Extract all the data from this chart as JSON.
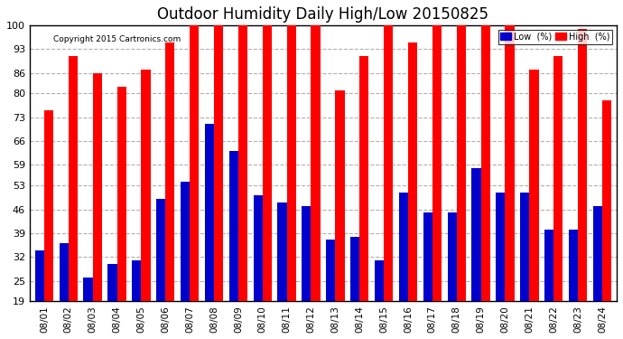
{
  "title": "Outdoor Humidity Daily High/Low 20150825",
  "copyright": "Copyright 2015 Cartronics.com",
  "dates": [
    "08/01",
    "08/02",
    "08/03",
    "08/04",
    "08/05",
    "08/06",
    "08/07",
    "08/08",
    "08/09",
    "08/10",
    "08/11",
    "08/12",
    "08/13",
    "08/14",
    "08/15",
    "08/16",
    "08/17",
    "08/18",
    "08/19",
    "08/20",
    "08/21",
    "08/22",
    "08/23",
    "08/24"
  ],
  "high": [
    75,
    91,
    86,
    82,
    87,
    95,
    100,
    100,
    100,
    100,
    100,
    100,
    81,
    91,
    100,
    95,
    100,
    100,
    100,
    100,
    87,
    91,
    99,
    78
  ],
  "low": [
    34,
    36,
    26,
    30,
    31,
    49,
    54,
    71,
    63,
    50,
    48,
    47,
    37,
    38,
    31,
    51,
    45,
    45,
    58,
    51,
    51,
    40,
    40,
    47
  ],
  "high_color": "#ff0000",
  "low_color": "#0000cc",
  "bg_color": "#ffffff",
  "grid_color": "#b0b0b0",
  "ymin": 19,
  "ymax": 100,
  "yticks": [
    19,
    25,
    32,
    39,
    46,
    53,
    59,
    66,
    73,
    80,
    86,
    93,
    100
  ],
  "title_fontsize": 12,
  "legend_low_label": "Low  (%)",
  "legend_high_label": "High  (%)"
}
